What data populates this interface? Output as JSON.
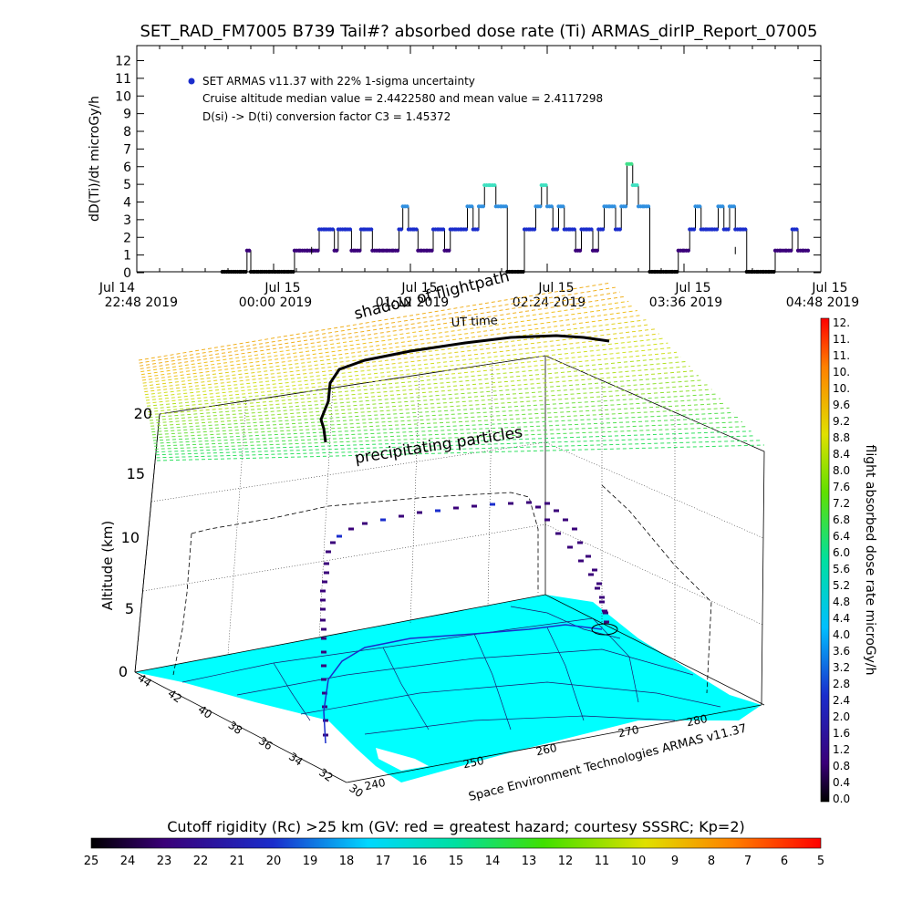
{
  "colors": {
    "background": "#ffffff",
    "cruise_black": "#000000",
    "mid_purple": "#3a007a",
    "dark_blue": "#1a2dcc",
    "light_blue": "#2f8fe0",
    "green": "#3fe08a",
    "map_cyan": "#00ffff",
    "state_lines": "#1a1a6e"
  },
  "title": "SET_RAD_FM7005  B739 Tail#? absorbed dose rate (Ti) ARMAS_dirIP_Report_07005",
  "top_chart": {
    "ylabel": "dD(Ti)/dt microGy/h",
    "legend_series": "SET ARMAS v11.37 with 22% 1-sigma uncertainty",
    "note1": "Cruise altitude median value = 2.4422580 and mean value = 2.4117298",
    "note2": "D(si) -> D(ti) conversion factor C3 = 1.45372",
    "yticks": [
      "0",
      "1",
      "2",
      "3",
      "4",
      "5",
      "6",
      "7",
      "8",
      "9",
      "10",
      "11",
      "12"
    ],
    "xticks": [
      {
        "line1": "Jul 14",
        "line2": "22:48 2019"
      },
      {
        "line1": "Jul 15",
        "line2": "00:00 2019"
      },
      {
        "line1": "Jul 15",
        "line2": "01:12 2019"
      },
      {
        "line1": "Jul 15",
        "line2": "02:24 2019"
      },
      {
        "line1": "Jul 15",
        "line2": "03:36 2019"
      },
      {
        "line1": "Jul 15",
        "line2": "04:48 2019"
      }
    ]
  },
  "chart_data": [
    {
      "type": "line",
      "title": "SET_RAD_FM7005  B739 Tail#? absorbed dose rate (Ti) ARMAS_dirIP_Report_07005",
      "xlabel": "",
      "ylabel": "dD(Ti)/dt microGy/h",
      "ylim": [
        0,
        12
      ],
      "xlim": [
        "Jul 14 22:48 2019",
        "Jul 15 04:48 2019"
      ],
      "grid": false,
      "legend_position": "top-left",
      "series": [
        {
          "name": "SET ARMAS v11.37 with 22% 1-sigma uncertainty",
          "x_minutes_from_2248": [
            0,
            45,
            55,
            58,
            60,
            62,
            64,
            66,
            70,
            73,
            75,
            78,
            80,
            83,
            86,
            90,
            93,
            96,
            99,
            100,
            102,
            104,
            106,
            110,
            113,
            115,
            118,
            120,
            124,
            128,
            130,
            132,
            135,
            138,
            140,
            143,
            146,
            148,
            150,
            153,
            156,
            159,
            162,
            165,
            168,
            171,
            174,
            177,
            180,
            183,
            186,
            189,
            192,
            195,
            198,
            201,
            204,
            207,
            210,
            213,
            216,
            219,
            222,
            225,
            228,
            231,
            234,
            237,
            240,
            243,
            246,
            249,
            252,
            255,
            258,
            261,
            264,
            267,
            270,
            273,
            276,
            279,
            282,
            285,
            288,
            291,
            294,
            297,
            300,
            303,
            306,
            309,
            312,
            315,
            318,
            321,
            324,
            327,
            330,
            333,
            336,
            339,
            342,
            345,
            348,
            351,
            354,
            357,
            360
          ],
          "values": [
            null,
            0,
            0,
            1.2,
            0,
            0,
            0,
            0,
            0,
            0,
            0,
            0,
            0,
            1.2,
            1.2,
            1.2,
            1.2,
            2.4,
            2.4,
            2.4,
            2.4,
            1.2,
            2.4,
            2.4,
            1.2,
            1.2,
            2.4,
            2.4,
            1.2,
            1.2,
            1.2,
            1.2,
            1.2,
            2.4,
            3.7,
            2.4,
            2.4,
            1.2,
            1.2,
            1.2,
            2.4,
            2.4,
            1.2,
            2.4,
            2.4,
            2.4,
            3.7,
            2.4,
            3.7,
            4.9,
            4.9,
            3.7,
            3.7,
            0,
            0,
            0,
            2.4,
            2.4,
            3.7,
            4.9,
            3.7,
            2.4,
            3.7,
            2.4,
            2.4,
            1.2,
            2.4,
            2.4,
            1.2,
            2.4,
            3.7,
            3.7,
            2.4,
            3.7,
            6.1,
            4.9,
            3.7,
            3.7,
            0,
            0,
            0,
            0,
            0,
            1.2,
            1.2,
            2.4,
            3.7,
            2.4,
            2.4,
            2.4,
            3.7,
            2.4,
            3.7,
            2.4,
            2.4,
            0,
            0,
            0,
            0,
            0,
            1.2,
            1.2,
            1.2,
            2.4,
            1.2,
            1.2,
            null,
            null
          ]
        }
      ]
    },
    {
      "type": "scatter",
      "title": "",
      "xlabel": "",
      "ylabel": "Altitude (km)",
      "zlim": [
        0,
        20
      ],
      "zticks": [
        0,
        5,
        10,
        15,
        20
      ],
      "latitude_ticks": [
        44,
        42,
        40,
        38,
        36,
        34,
        32,
        30
      ],
      "longitude_ticks": [
        240,
        250,
        260,
        270,
        280
      ],
      "annotations": [
        "shadow of flightpath",
        "UT time",
        "precipitating particles"
      ],
      "series": [
        {
          "name": "flightpath",
          "altitude_km": [
            0,
            2,
            4,
            5.5,
            6,
            7,
            8.5,
            10,
            10.5,
            11.5,
            12.2,
            12.6,
            12.8,
            12.9,
            12.9,
            12.3,
            10.5,
            8.5,
            7,
            5.5,
            4.5
          ]
        }
      ]
    }
  ],
  "colorbar_right": {
    "label": "flight absorbed dose rate microGy/h",
    "ticks": [
      "12.",
      "11.",
      "11.",
      "10.",
      "10.",
      "9.6",
      "9.2",
      "8.8",
      "8.4",
      "8.0",
      "7.6",
      "7.2",
      "6.8",
      "6.4",
      "6.0",
      "5.6",
      "5.2",
      "4.8",
      "4.4",
      "4.0",
      "3.6",
      "3.2",
      "2.8",
      "2.4",
      "2.0",
      "1.6",
      "1.2",
      "0.8",
      "0.4",
      "0.0"
    ]
  },
  "bottom_bar": {
    "label": "Cutoff rigidity (Rc) >25 km (GV: red = greatest hazard; courtesy SSSRC; Kp=2)",
    "ticks": [
      "25",
      "24",
      "23",
      "22",
      "21",
      "20",
      "19",
      "18",
      "17",
      "16",
      "15",
      "14",
      "13",
      "12",
      "11",
      "10",
      "9",
      "8",
      "7",
      "6",
      "5"
    ]
  },
  "globe": {
    "altitude_label": "Altitude (km)",
    "zticks": [
      "0",
      "5",
      "10",
      "15",
      "20"
    ],
    "shadow_label": "shadow of flightpath",
    "ut_label": "UT time",
    "precip_label": "precipitating particles",
    "credit": "Space Environment Technologies ARMAS v11.37",
    "lat_ticks": [
      "44",
      "42",
      "40",
      "38",
      "36",
      "34",
      "32",
      "30"
    ],
    "lon_ticks": [
      "240",
      "250",
      "260",
      "270",
      "280"
    ]
  }
}
